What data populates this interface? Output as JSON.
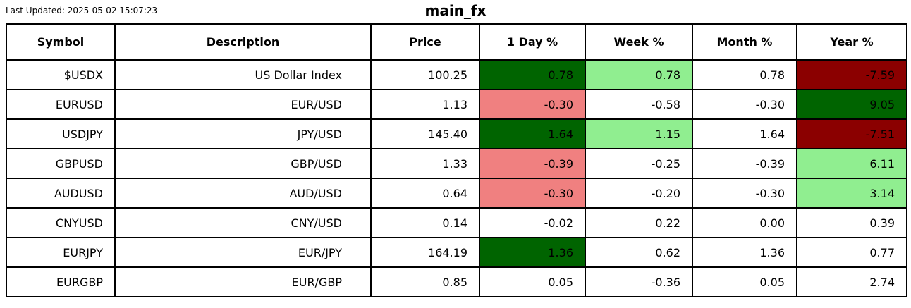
{
  "header": {
    "last_updated": "Last Updated: 2025-05-02 15:07:23",
    "title": "main_fx"
  },
  "colors": {
    "strong_gain_bg": "#006400",
    "gain_bg": "#90EE90",
    "loss_bg": "#F08080",
    "strong_loss_bg": "#8B0000",
    "neutral_bg": "#FFFFFF",
    "border": "#000000",
    "text": "#000000"
  },
  "chart_data": {
    "type": "table",
    "title": "main_fx",
    "columns": [
      "Symbol",
      "Description",
      "Price",
      "1 Day %",
      "Week %",
      "Month %",
      "Year %"
    ],
    "rows": [
      {
        "symbol": "$USDX",
        "description": "US Dollar Index",
        "price": "100.25",
        "day": "0.78",
        "week": "0.78",
        "month": "0.78",
        "year": "-7.59",
        "day_bg": "darkgreen",
        "week_bg": "lightgreen",
        "month_bg": "white",
        "year_bg": "darkred"
      },
      {
        "symbol": "EURUSD",
        "description": "EUR/USD",
        "price": "1.13",
        "day": "-0.30",
        "week": "-0.58",
        "month": "-0.30",
        "year": "9.05",
        "day_bg": "lightcoral",
        "week_bg": "white",
        "month_bg": "white",
        "year_bg": "darkgreen"
      },
      {
        "symbol": "USDJPY",
        "description": "JPY/USD",
        "price": "145.40",
        "day": "1.64",
        "week": "1.15",
        "month": "1.64",
        "year": "-7.51",
        "day_bg": "darkgreen",
        "week_bg": "lightgreen",
        "month_bg": "white",
        "year_bg": "darkred"
      },
      {
        "symbol": "GBPUSD",
        "description": "GBP/USD",
        "price": "1.33",
        "day": "-0.39",
        "week": "-0.25",
        "month": "-0.39",
        "year": "6.11",
        "day_bg": "lightcoral",
        "week_bg": "white",
        "month_bg": "white",
        "year_bg": "lightgreen"
      },
      {
        "symbol": "AUDUSD",
        "description": "AUD/USD",
        "price": "0.64",
        "day": "-0.30",
        "week": "-0.20",
        "month": "-0.30",
        "year": "3.14",
        "day_bg": "lightcoral",
        "week_bg": "white",
        "month_bg": "white",
        "year_bg": "lightgreen"
      },
      {
        "symbol": "CNYUSD",
        "description": "CNY/USD",
        "price": "0.14",
        "day": "-0.02",
        "week": "0.22",
        "month": "0.00",
        "year": "0.39",
        "day_bg": "white",
        "week_bg": "white",
        "month_bg": "white",
        "year_bg": "white"
      },
      {
        "symbol": "EURJPY",
        "description": "EUR/JPY",
        "price": "164.19",
        "day": "1.36",
        "week": "0.62",
        "month": "1.36",
        "year": "0.77",
        "day_bg": "darkgreen",
        "week_bg": "white",
        "month_bg": "white",
        "year_bg": "white"
      },
      {
        "symbol": "EURGBP",
        "description": "EUR/GBP",
        "price": "0.85",
        "day": "0.05",
        "week": "-0.36",
        "month": "0.05",
        "year": "2.74",
        "day_bg": "white",
        "week_bg": "white",
        "month_bg": "white",
        "year_bg": "white"
      }
    ]
  }
}
